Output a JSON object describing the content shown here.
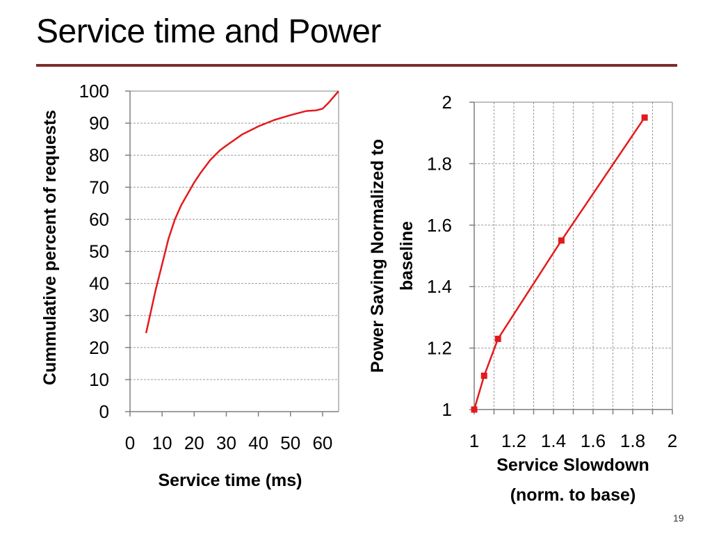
{
  "slide": {
    "title": "Service time and Power",
    "page_number": "19",
    "rule_color": "#7a2e2a"
  },
  "chart_data": [
    {
      "type": "line",
      "xlabel": "Service time (ms)",
      "ylabel": "Cummulative percent of requests",
      "xlim": [
        0,
        65
      ],
      "ylim": [
        0,
        100
      ],
      "x_ticks": [
        0,
        10,
        20,
        30,
        40,
        50,
        60
      ],
      "y_ticks": [
        0,
        10,
        20,
        30,
        40,
        50,
        60,
        70,
        80,
        90,
        100
      ],
      "grid": "horizontal dashed",
      "series": [
        {
          "color": "#e31a1c",
          "marker": "none",
          "x": [
            5,
            6,
            8,
            10,
            12,
            14,
            16,
            18,
            20,
            22,
            25,
            28,
            30,
            35,
            40,
            45,
            50,
            55,
            58,
            60,
            62,
            65
          ],
          "y": [
            24.5,
            29,
            38,
            46,
            54,
            60,
            64.5,
            68,
            71.5,
            74.5,
            78.5,
            81.5,
            83,
            86.5,
            89,
            91,
            92.5,
            93.8,
            94,
            94.5,
            96.5,
            100
          ]
        }
      ]
    },
    {
      "type": "line",
      "xlabel_line1": "Service Slowdown",
      "xlabel_line2": "(norm. to base)",
      "ylabel_line1": "Power Saving Normalized to",
      "ylabel_line2": "baseline",
      "xlim": [
        1,
        2
      ],
      "ylim": [
        1,
        2
      ],
      "x_ticks": [
        "1",
        "1.2",
        "1.4",
        "1.6",
        "1.8",
        "2"
      ],
      "y_ticks": [
        "1",
        "1.2",
        "1.4",
        "1.6",
        "1.8",
        "2"
      ],
      "grid": "both dashed",
      "series": [
        {
          "color": "#e31a1c",
          "marker": "square",
          "x": [
            1.0,
            1.05,
            1.12,
            1.44,
            1.86
          ],
          "y": [
            1.0,
            1.11,
            1.23,
            1.55,
            1.95
          ]
        }
      ]
    }
  ]
}
